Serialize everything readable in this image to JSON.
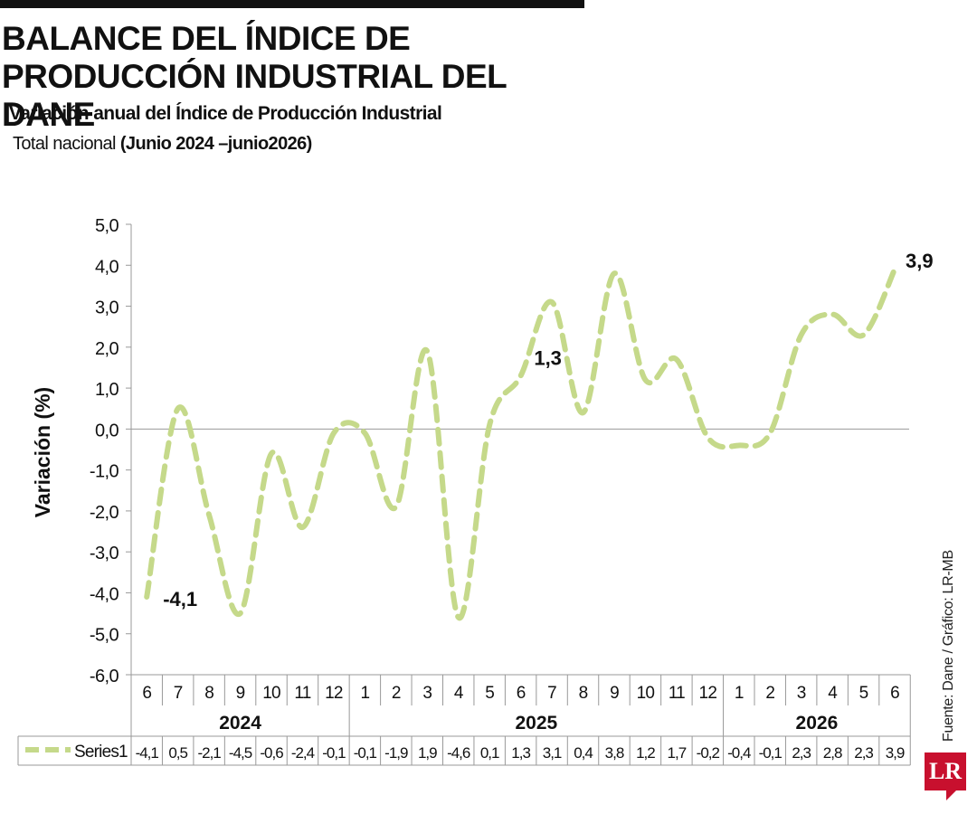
{
  "header": {
    "title": "BALANCE DEL ÍNDICE DE PRODUCCIÓN INDUSTRIAL DEL DANE",
    "subtitle": "Variación anual del Índice de Producción Industrial",
    "scope_prefix": "Total nacional ",
    "scope_period": "(Junio 2024 –junio2026)"
  },
  "source": "Fuente: Dane / Gráfico: LR-MB",
  "logo": "LR",
  "colors": {
    "series": "#c5d98a",
    "axis": "#999999",
    "text": "#111111",
    "brand": "#c8102e"
  },
  "chart_data": {
    "type": "line",
    "ylabel": "Variación (%)",
    "ylim": [
      -6,
      5
    ],
    "y_ticks": [
      "5,0",
      "4,0",
      "3,0",
      "2,0",
      "1,0",
      "0,0",
      "-1,0",
      "-2,0",
      "-3,0",
      "-4,0",
      "-5,0",
      "-6,0"
    ],
    "categories": [
      "6",
      "7",
      "8",
      "9",
      "10",
      "11",
      "12",
      "1",
      "2",
      "3",
      "4",
      "5",
      "6",
      "7",
      "8",
      "9",
      "10",
      "11",
      "12",
      "1",
      "2",
      "3",
      "4",
      "5",
      "6"
    ],
    "year_groups": [
      {
        "label": "2024",
        "count": 7
      },
      {
        "label": "2025",
        "count": 12
      },
      {
        "label": "2026",
        "count": 6
      }
    ],
    "series": [
      {
        "name": "Series1",
        "values": [
          -4.1,
          0.5,
          -2.1,
          -4.5,
          -0.6,
          -2.4,
          -0.1,
          -0.1,
          -1.9,
          1.9,
          -4.6,
          0.1,
          1.3,
          3.1,
          0.4,
          3.8,
          1.2,
          1.7,
          -0.2,
          -0.4,
          -0.1,
          2.3,
          2.8,
          2.3,
          3.9
        ],
        "value_labels": [
          "-4,1",
          "0,5",
          "-2,1",
          "-4,5",
          "-0,6",
          "-2,4",
          "-0,1",
          "-0,1",
          "-1,9",
          "1,9",
          "-4,6",
          "0,1",
          "1,3",
          "3,1",
          "0,4",
          "3,8",
          "1,2",
          "1,7",
          "-0,2",
          "-0,4",
          "-0,1",
          "2,3",
          "2,8",
          "2,3",
          "3,9"
        ]
      }
    ],
    "annotations": [
      {
        "index": 0,
        "text": "-4,1"
      },
      {
        "index": 12,
        "text": "1,3"
      },
      {
        "index": 24,
        "text": "3,9"
      }
    ],
    "data_table": true,
    "grid": false
  }
}
